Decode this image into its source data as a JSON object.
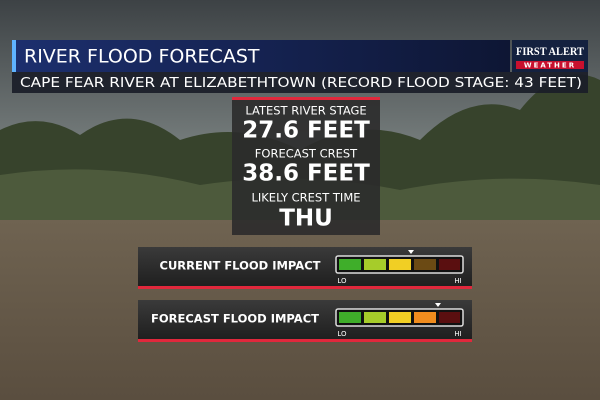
{
  "header": {
    "title": "RIVER FLOOD FORECAST",
    "subtitle": "CAPE FEAR RIVER AT ELIZABETHTOWN (RECORD FLOOD STAGE: 43 FEET)",
    "logo": {
      "line1": "FIRST ALERT",
      "line2": "WEATHER"
    }
  },
  "stats": [
    {
      "label": "LATEST RIVER STAGE",
      "value": "27.6 FEET"
    },
    {
      "label": "FORECAST CREST",
      "value": "38.6 FEET"
    },
    {
      "label": "LIKELY CREST TIME",
      "value": "THU"
    }
  ],
  "impacts": [
    {
      "label": "CURRENT FLOOD IMPACT",
      "low": "LO",
      "high": "HI"
    },
    {
      "label": "FORECAST FLOOD IMPACT",
      "low": "LO",
      "high": "HI"
    }
  ]
}
